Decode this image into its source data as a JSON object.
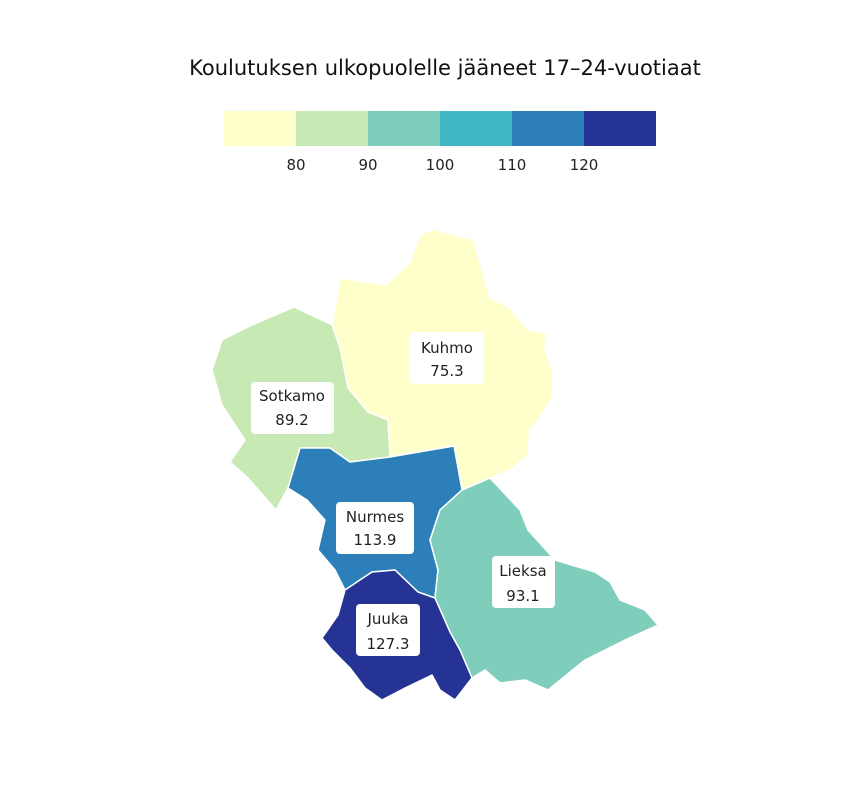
{
  "title": "Koulutuksen ulkopuolelle jääneet 17–24-vuotiaat",
  "legend": {
    "bins": [
      {
        "color": "#ffffcc"
      },
      {
        "color": "#c7e9b4"
      },
      {
        "color": "#7fcdbb"
      },
      {
        "color": "#41b6c4"
      },
      {
        "color": "#2c7fb8"
      },
      {
        "color": "#253494"
      }
    ],
    "ticks": [
      "80",
      "90",
      "100",
      "110",
      "120"
    ]
  },
  "regions": [
    {
      "name": "Kuhmo",
      "value": "75.3",
      "color": "#ffffcc"
    },
    {
      "name": "Sotkamo",
      "value": "89.2",
      "color": "#c7e9b4"
    },
    {
      "name": "Nurmes",
      "value": "113.9",
      "color": "#2c7fb8"
    },
    {
      "name": "Lieksa",
      "value": "93.1",
      "color": "#7fcdbb"
    },
    {
      "name": "Juuka",
      "value": "127.3",
      "color": "#253494"
    }
  ]
}
